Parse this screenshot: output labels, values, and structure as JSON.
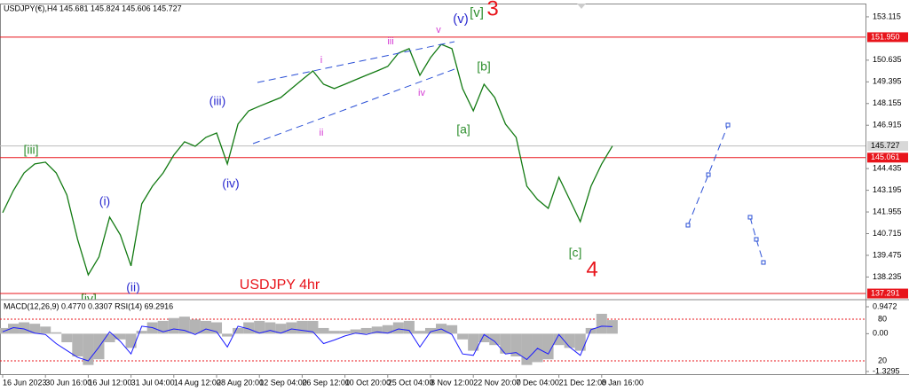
{
  "chart_data": [
    {
      "type": "line",
      "title": "USDJPY(€),H4  145.681 145.824 145.606 145.727",
      "x": [
        "16 Jun 2023",
        null,
        null,
        null,
        "30 Jun 16:00",
        null,
        null,
        null,
        "16 Jul 12:00",
        null,
        null,
        null,
        "31 Jul 04:00",
        null,
        null,
        null,
        "14 Aug 12:00",
        null,
        null,
        null,
        "28 Aug 20:00",
        null,
        null,
        null,
        "12 Sep 04:00",
        null,
        null,
        null,
        "26 Sep 12:00",
        null,
        null,
        null,
        "10 Oct 20:00",
        null,
        null,
        null,
        "25 Oct 04:00",
        null,
        null,
        null,
        "8 Nov 12:00",
        null,
        null,
        null,
        "22 Nov 20:00",
        null,
        null,
        null,
        "7 Dec 04:00",
        null,
        null,
        null,
        "21 Dec 12:00",
        null,
        null,
        null,
        "8 Jan 16:00",
        null
      ],
      "series": [
        {
          "color": "#127a12",
          "values": [
            141.91,
            143.18,
            144.19,
            144.7,
            144.8,
            144.19,
            142.93,
            140.39,
            138.36,
            139.38,
            141.66,
            140.64,
            138.87,
            142.42,
            143.43,
            144.19,
            145.21,
            145.97,
            145.71,
            146.22,
            146.47,
            144.7,
            146.98,
            147.74,
            148,
            148.25,
            148.5,
            149.01,
            149.52,
            150.02,
            149.26,
            149.01,
            149.26,
            149.52,
            149.77,
            150.02,
            150.28,
            151.04,
            151.29,
            149.77,
            150.78,
            151.54,
            151.29,
            149.01,
            147.74,
            149.26,
            148.5,
            146.98,
            146.22,
            143.43,
            142.67,
            142.16,
            143.94,
            142.67,
            141.4,
            143.43,
            144.7,
            145.727
          ]
        }
      ],
      "ylim": [
        137.04,
        153.67
      ],
      "yticks": [
        153.115,
        150.635,
        149.395,
        148.155,
        146.915,
        144.435,
        143.195,
        141.955,
        140.715,
        139.475,
        138.235
      ],
      "levels": [
        {
          "value": 151.95,
          "label": "151.950"
        },
        {
          "value": 145.061,
          "label": "145.061"
        },
        {
          "value": 137.291,
          "label": "137.291"
        }
      ],
      "level_color": "#e8141b",
      "current_price": 145.727,
      "annotations": [
        {
          "text": "[iii]",
          "color": "#2f8f2f"
        },
        {
          "text": "(i)",
          "color": "#2b2bd0"
        },
        {
          "text": "(ii)",
          "color": "#2b2bd0"
        },
        {
          "text": "[iv]",
          "color": "#2f8f2f"
        },
        {
          "text": "(iii)",
          "color": "#2b2bd0"
        },
        {
          "text": "(iv)",
          "color": "#2b2bd0"
        },
        {
          "text": "i",
          "color": "#d43bd4"
        },
        {
          "text": "ii",
          "color": "#d43bd4"
        },
        {
          "text": "iii",
          "color": "#d43bd4"
        },
        {
          "text": "iv",
          "color": "#d43bd4"
        },
        {
          "text": "v",
          "color": "#d43bd4"
        },
        {
          "text": "(v)",
          "color": "#2b2bd0"
        },
        {
          "text": "[v]",
          "color": "#2f8f2f"
        },
        {
          "text": "3",
          "color": "#e8141b"
        },
        {
          "text": "[a]",
          "color": "#2f8f2f"
        },
        {
          "text": "[b]",
          "color": "#2f8f2f"
        },
        {
          "text": "[c]",
          "color": "#2f8f2f"
        },
        {
          "text": "4",
          "color": "#e8141b"
        },
        {
          "text": "USDJPY 4hr",
          "color": "#e8141b"
        }
      ]
    },
    {
      "type": "indicator",
      "title": "MACD(12,26,9) 0.4770 0.3307 RSI(14) 69.2916",
      "series": [
        {
          "color": "#b4b4b4",
          "values": [
            0.2,
            0.35,
            0.4,
            0.35,
            0.25,
            0.05,
            -0.3,
            -0.8,
            -1.1,
            -0.9,
            -0.3,
            -0.2,
            -0.5,
            0.1,
            0.4,
            0.45,
            0.55,
            0.6,
            0.5,
            0.45,
            0.4,
            -0.1,
            0.2,
            0.4,
            0.45,
            0.4,
            0.35,
            0.4,
            0.45,
            0.45,
            0.2,
            0.1,
            0.1,
            0.15,
            0.2,
            0.25,
            0.3,
            0.4,
            0.45,
            0.1,
            0.2,
            0.35,
            0.3,
            -0.2,
            -0.6,
            -0.3,
            -0.4,
            -0.7,
            -0.8,
            -1.1,
            -1,
            -0.9,
            -0.4,
            -0.5,
            -0.6,
            0.2,
            0.7,
            0.477
          ]
        },
        {
          "color": "#1a1aff",
          "axis": "y2",
          "values": [
            62,
            68,
            66,
            60,
            58,
            45,
            35,
            25,
            20,
            40,
            62,
            48,
            30,
            70,
            68,
            62,
            66,
            64,
            58,
            66,
            62,
            40,
            70,
            66,
            60,
            64,
            60,
            66,
            64,
            62,
            45,
            50,
            56,
            60,
            58,
            62,
            60,
            66,
            64,
            40,
            62,
            66,
            58,
            30,
            28,
            58,
            48,
            30,
            32,
            22,
            38,
            30,
            58,
            40,
            28,
            65,
            70,
            69.2916
          ]
        }
      ],
      "ylim": [
        -1.3295,
        0.9472
      ],
      "yticks": [
        0.9472,
        {
          "value": 0,
          "label": "0.00"
        },
        -1.3295
      ],
      "y2lim": [
        0,
        100
      ],
      "y2ticks": [
        80,
        20
      ],
      "y2_grid_color": "#e8141b"
    }
  ]
}
